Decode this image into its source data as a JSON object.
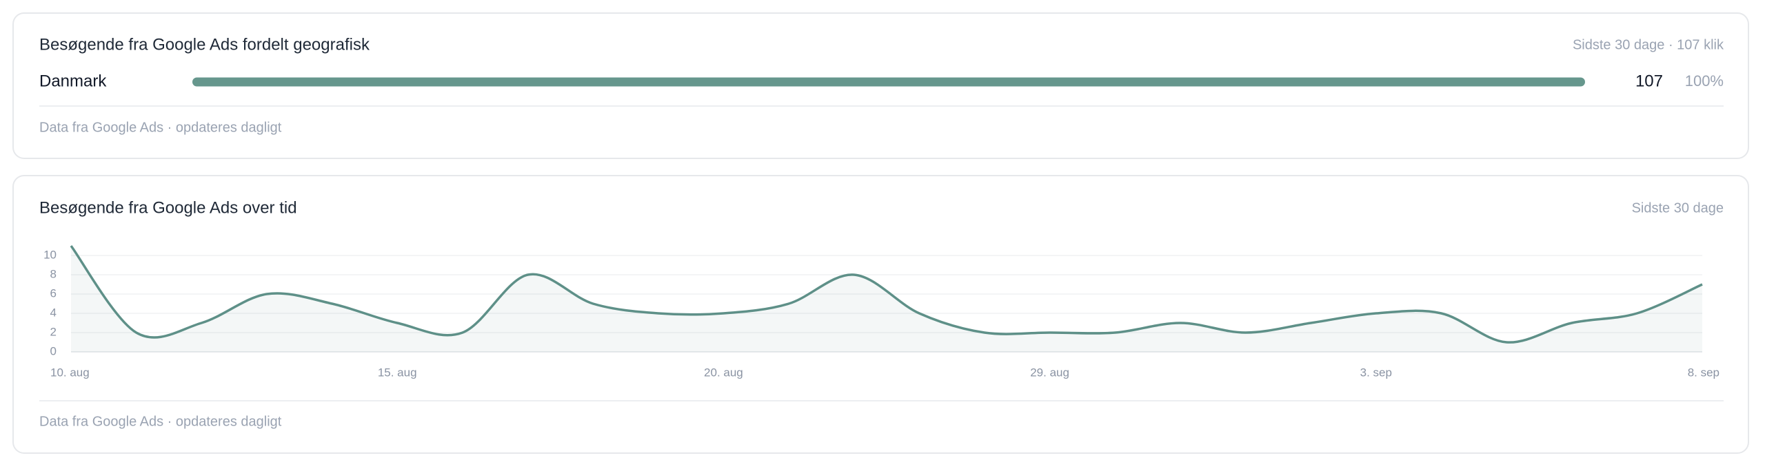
{
  "geo_card": {
    "title": "Besøgende fra Google Ads fordelt geografisk",
    "summary": "Sidste 30 dage · 107 klik",
    "rows": [
      {
        "name": "Danmark",
        "clicks": 107,
        "percent": 100,
        "percent_label": "100%"
      }
    ],
    "percent_max": 100,
    "color": "#66978d",
    "note": "Data fra Google Ads · opdateres dagligt"
  },
  "chart_data": {
    "type": "line",
    "title": "Besøgende fra Google Ads over tid",
    "subtitle": "Sidste 30 dage",
    "categories": [
      "10. aug",
      null,
      null,
      null,
      null,
      "15. aug",
      null,
      null,
      null,
      null,
      "20. aug",
      null,
      null,
      null,
      null,
      "29. aug",
      null,
      null,
      null,
      null,
      "3. sep",
      null,
      null,
      null,
      null,
      "8. sep"
    ],
    "values": [
      11,
      2,
      3,
      6,
      5,
      3,
      2,
      8,
      5,
      4,
      4,
      5,
      8,
      4,
      2,
      2,
      2,
      3,
      2,
      3,
      4,
      4,
      1,
      3,
      4,
      7
    ],
    "color": "#5e9088",
    "ylim": [
      0,
      11
    ],
    "yticks": [
      0,
      2,
      4,
      6,
      8,
      10
    ],
    "grid": true,
    "note": "Data fra Google Ads · opdateres dagligt"
  }
}
